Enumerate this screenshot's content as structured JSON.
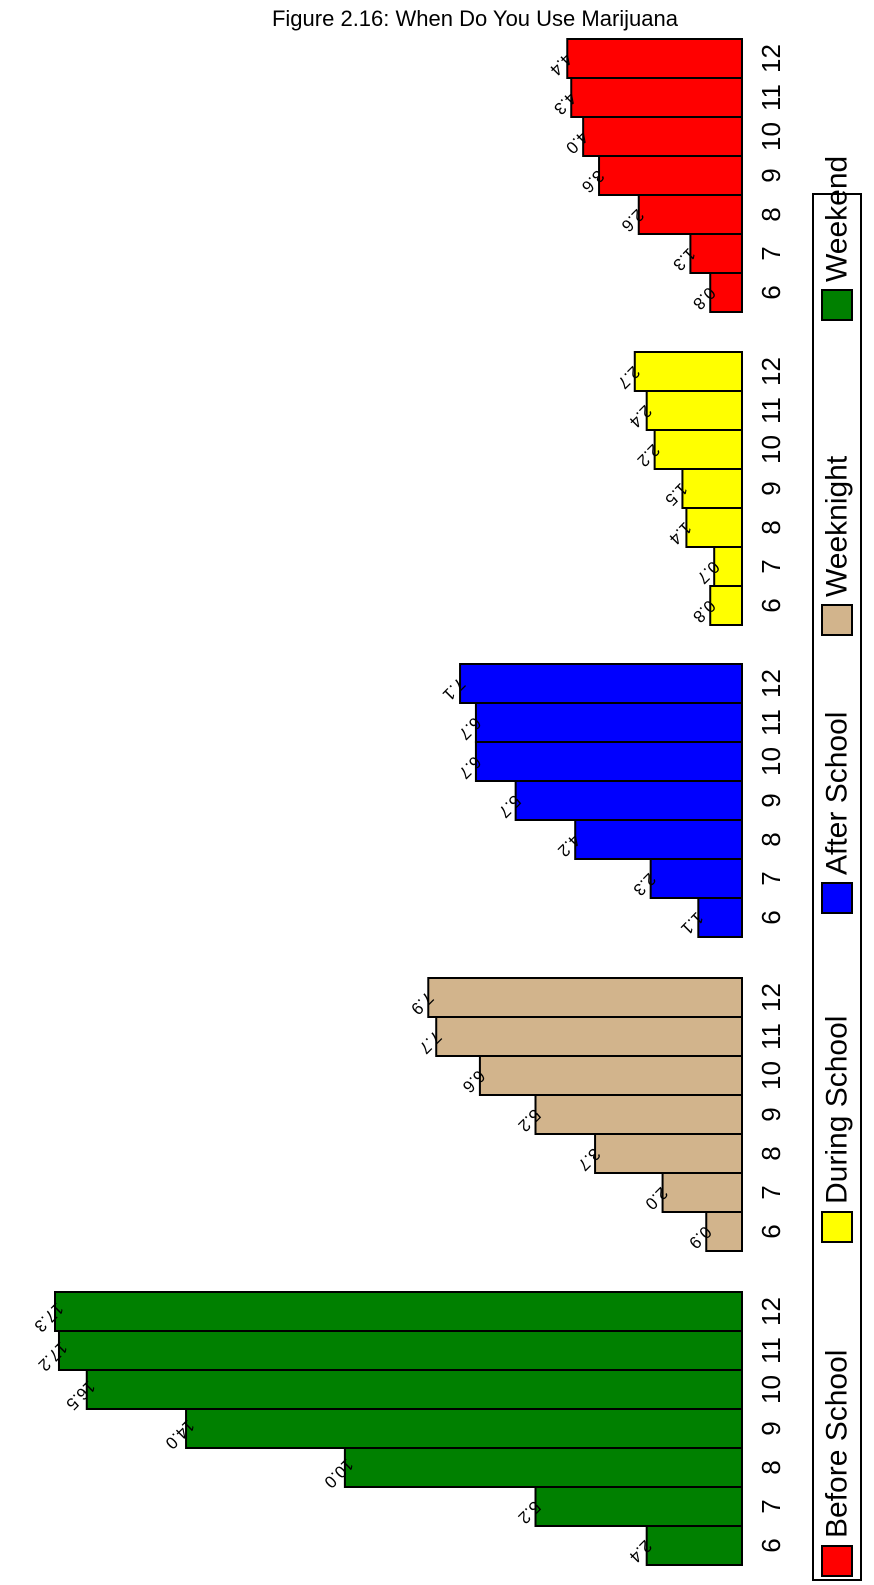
{
  "chart_data": {
    "type": "bar",
    "title": "Figure 2.16: When Do You Use Marijuana",
    "categories": [
      "6",
      "7",
      "8",
      "9",
      "10",
      "11",
      "12"
    ],
    "series": [
      {
        "name": "Before School",
        "color": "#ff0000",
        "values": [
          0.8,
          1.3,
          2.6,
          3.6,
          4.0,
          4.3,
          4.4
        ]
      },
      {
        "name": "During School",
        "color": "#ffff00",
        "values": [
          0.8,
          0.7,
          1.4,
          1.5,
          2.2,
          2.4,
          2.7
        ]
      },
      {
        "name": "After School",
        "color": "#0000ff",
        "values": [
          1.1,
          2.3,
          4.2,
          5.7,
          6.7,
          6.7,
          7.1
        ]
      },
      {
        "name": "Weeknight",
        "color": "#d2b48c",
        "values": [
          0.9,
          2.0,
          3.7,
          5.2,
          6.6,
          7.7,
          7.9
        ]
      },
      {
        "name": "Weekend",
        "color": "#008000",
        "values": [
          2.4,
          5.2,
          10.0,
          14.0,
          16.5,
          17.2,
          17.3
        ]
      }
    ],
    "value_labels": [
      [
        "0.8",
        "1.3",
        "2.6",
        "3.6",
        "4.0",
        "4.3",
        "4.4"
      ],
      [
        "0.8",
        "0.7",
        "1.4",
        "1.5",
        "2.2",
        "2.4",
        "2.7"
      ],
      [
        "1.1",
        "2.3",
        "4.2",
        "5.7",
        "6.7",
        "6.7",
        "7.1"
      ],
      [
        "0.9",
        "2.0",
        "3.7",
        "5.2",
        "6.6",
        "7.7",
        "7.9"
      ],
      [
        "2.4",
        "5.2",
        "10.0",
        "14.0",
        "16.5",
        "17.2",
        "17.3"
      ]
    ],
    "orientation": "rotated 90 degrees",
    "ylim": [
      0,
      17.3
    ],
    "grid": false,
    "legend_position": "right"
  }
}
